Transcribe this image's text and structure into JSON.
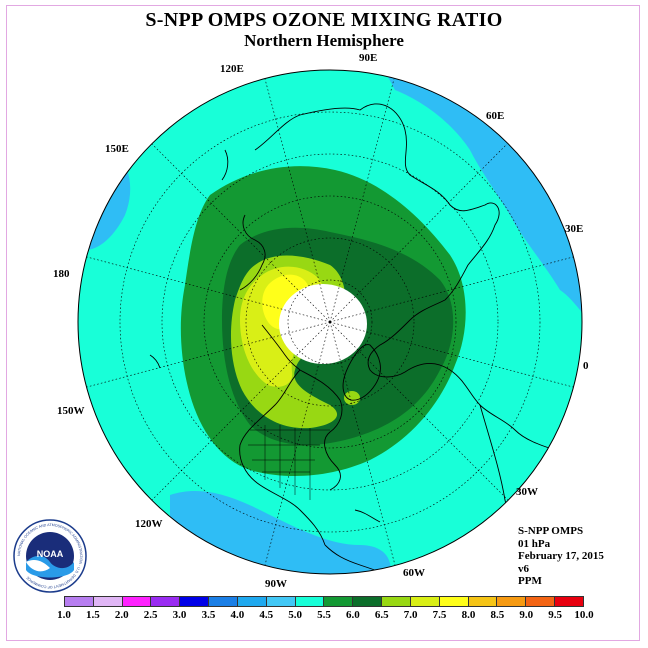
{
  "title": "S-NPP OMPS OZONE MIXING RATIO",
  "subtitle": "Northern Hemisphere",
  "longitude_labels": [
    "90E",
    "60E",
    "30E",
    "0",
    "30W",
    "60W",
    "90W",
    "120W",
    "150W",
    "180",
    "150E",
    "120E"
  ],
  "info": {
    "instrument": "S-NPP OMPS",
    "level": "01 hPa",
    "date": "February 17, 2015",
    "version": "v6",
    "units": "PPM"
  },
  "colorbar": {
    "labels": [
      "1.0",
      "1.5",
      "2.0",
      "2.5",
      "3.0",
      "3.5",
      "4.0",
      "4.5",
      "5.0",
      "5.5",
      "6.0",
      "6.5",
      "7.0",
      "7.5",
      "8.0",
      "8.5",
      "9.0",
      "9.5",
      "10.0"
    ],
    "colors": [
      "#b77ef0",
      "#e0b6f5",
      "#ff22ff",
      "#9a2cf2",
      "#0000e8",
      "#1b7fe6",
      "#1fa9ef",
      "#42c8f6",
      "#18ffd8",
      "#139933",
      "#0c6e2a",
      "#98d813",
      "#d9ef16",
      "#ffff1a",
      "#f5c416",
      "#f69a12",
      "#f36414",
      "#e8000f",
      "#7c4c2a"
    ]
  },
  "logo": {
    "text": "NOAA",
    "ring_text": "NATIONAL OCEANIC AND ATMOSPHERIC ADMINISTRATION · U.S. DEPARTMENT OF COMMERCE"
  },
  "colors": {
    "outside": "#2fbdf5",
    "background_field": "#18ffd8",
    "mid_green": "#139933",
    "dark_green": "#0c6e2a",
    "yellow_green": "#98d813",
    "lime": "#d9ef16",
    "yellow": "#ffff1a",
    "pole_missing": "#ffffff"
  }
}
